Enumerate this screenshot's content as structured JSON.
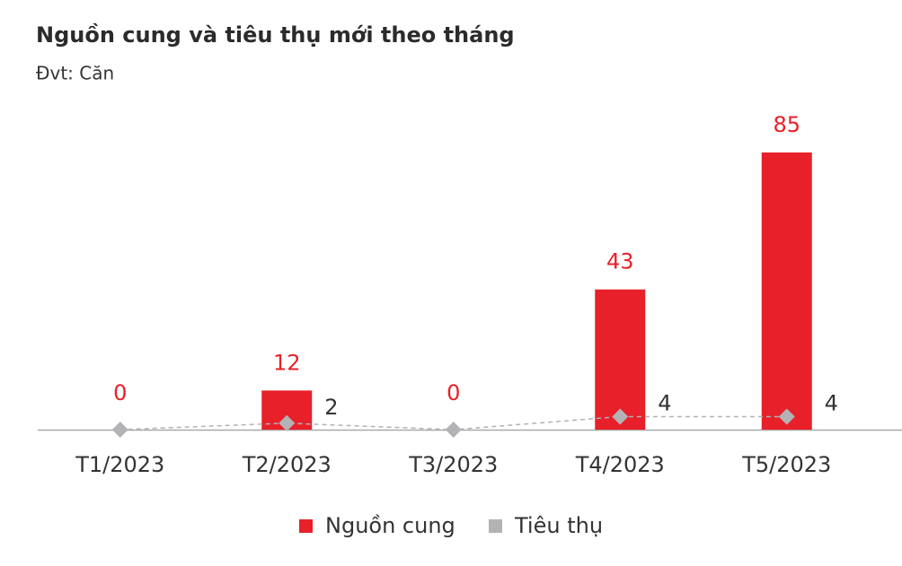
{
  "chart_data": {
    "type": "bar",
    "title": "Nguồn cung và tiêu thụ mới theo tháng",
    "subtitle": "Đvt: Căn",
    "categories": [
      "T1/2023",
      "T2/2023",
      "T3/2023",
      "T4/2023",
      "T5/2023"
    ],
    "series": [
      {
        "name": "Nguồn cung",
        "color": "#e8202a",
        "type": "bar",
        "values": [
          0,
          12,
          0,
          43,
          85
        ]
      },
      {
        "name": "Tiêu thụ",
        "color": "#b3b3b5",
        "type": "line",
        "values": [
          0,
          2,
          0,
          4,
          4
        ]
      }
    ],
    "legend": "bottom"
  }
}
